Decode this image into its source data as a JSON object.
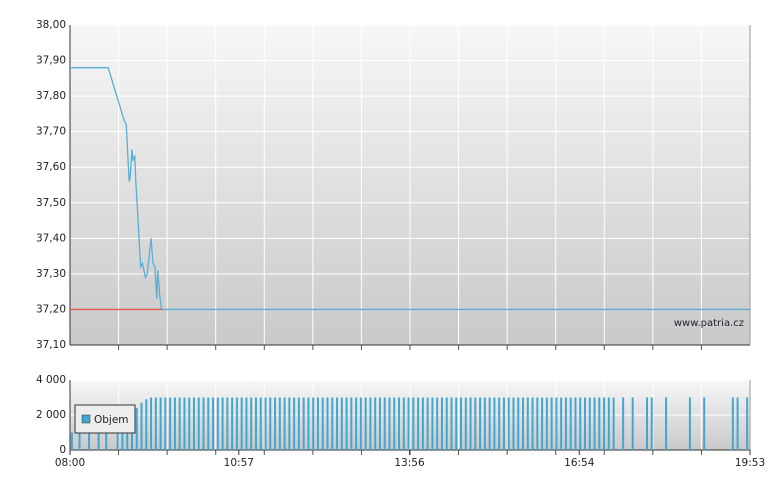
{
  "chart_data": [
    {
      "type": "line",
      "x": [
        "08:00",
        "08:40",
        "08:57",
        "08:59",
        "09:02",
        "09:03",
        "09:05",
        "09:06",
        "09:08",
        "09:09",
        "09:12",
        "09:14",
        "09:16",
        "09:19",
        "09:21",
        "09:25",
        "09:27",
        "09:29",
        "09:31",
        "09:32",
        "09:34",
        "09:36",
        "19:53"
      ],
      "series": [
        {
          "color": "#5aaed6",
          "values": [
            37.88,
            37.88,
            37.73,
            37.72,
            37.56,
            37.57,
            37.65,
            37.62,
            37.63,
            37.56,
            37.42,
            37.32,
            37.33,
            37.29,
            37.3,
            37.4,
            37.33,
            37.32,
            37.23,
            37.31,
            37.24,
            37.2,
            37.2
          ]
        },
        {
          "color": "#e8574a",
          "values": [
            37.2,
            37.2,
            37.2,
            37.2,
            37.2,
            37.2,
            37.2,
            37.2,
            37.2,
            37.2,
            37.2,
            37.2,
            37.2,
            37.2,
            37.2,
            37.2,
            37.2,
            37.2,
            37.2,
            37.2,
            37.2,
            37.2,
            null
          ]
        }
      ],
      "xlim": [
        "08:00",
        "19:53"
      ],
      "ylim": [
        37.1,
        38.0
      ],
      "yticks": [
        {
          "value": 37.1,
          "label": "37,10"
        },
        {
          "value": 37.2,
          "label": "37,20"
        },
        {
          "value": 37.3,
          "label": "37,30"
        },
        {
          "value": 37.4,
          "label": "37,40"
        },
        {
          "value": 37.5,
          "label": "37,50"
        },
        {
          "value": 37.6,
          "label": "37,60"
        },
        {
          "value": 37.7,
          "label": "37,70"
        },
        {
          "value": 37.8,
          "label": "37,80"
        },
        {
          "value": 37.9,
          "label": "37,90"
        },
        {
          "value": 38.0,
          "label": "38,00"
        }
      ],
      "grid": true,
      "annotation": "www.patria.cz"
    },
    {
      "type": "bar",
      "x": [
        "08:02",
        "08:10",
        "08:20",
        "08:30",
        "08:38",
        "08:50",
        "08:55",
        "09:00",
        "09:05",
        "09:10",
        "09:15",
        "09:20",
        "09:25",
        "09:30",
        "09:35",
        "09:40",
        "09:45",
        "09:50",
        "09:55",
        "10:00",
        "10:05",
        "10:10",
        "10:15",
        "10:20",
        "10:25",
        "10:30",
        "10:35",
        "10:40",
        "10:45",
        "10:50",
        "10:55",
        "11:00",
        "11:05",
        "11:10",
        "11:15",
        "11:20",
        "11:25",
        "11:30",
        "11:35",
        "11:40",
        "11:45",
        "11:50",
        "11:55",
        "12:00",
        "12:05",
        "12:10",
        "12:15",
        "12:20",
        "12:25",
        "12:30",
        "12:35",
        "12:40",
        "12:45",
        "12:50",
        "12:55",
        "13:00",
        "13:05",
        "13:10",
        "13:15",
        "13:20",
        "13:25",
        "13:30",
        "13:35",
        "13:40",
        "13:45",
        "13:50",
        "13:55",
        "14:00",
        "14:05",
        "14:10",
        "14:15",
        "14:20",
        "14:25",
        "14:30",
        "14:35",
        "14:40",
        "14:45",
        "14:50",
        "14:55",
        "15:00",
        "15:05",
        "15:10",
        "15:15",
        "15:20",
        "15:25",
        "15:30",
        "15:35",
        "15:40",
        "15:45",
        "15:50",
        "15:55",
        "16:00",
        "16:05",
        "16:10",
        "16:15",
        "16:20",
        "16:25",
        "16:30",
        "16:35",
        "16:40",
        "16:45",
        "16:50",
        "16:55",
        "17:00",
        "17:05",
        "17:10",
        "17:15",
        "17:20",
        "17:25",
        "17:30",
        "17:40",
        "17:50",
        "18:05",
        "18:10",
        "18:25",
        "18:50",
        "19:05",
        "19:35",
        "19:40",
        "19:50"
      ],
      "series": [
        {
          "name": "Objem",
          "color": "#43a6d0",
          "values": [
            1000,
            1000,
            1000,
            1000,
            1000,
            1200,
            1500,
            1800,
            2100,
            2400,
            2700,
            2900,
            3000,
            3000,
            3000,
            3000,
            3000,
            3000,
            3000,
            3000,
            3000,
            3000,
            3000,
            3000,
            3000,
            3000,
            3000,
            3000,
            3000,
            3000,
            3000,
            3000,
            3000,
            3000,
            3000,
            3000,
            3000,
            3000,
            3000,
            3000,
            3000,
            3000,
            3000,
            3000,
            3000,
            3000,
            3000,
            3000,
            3000,
            3000,
            3000,
            3000,
            3000,
            3000,
            3000,
            3000,
            3000,
            3000,
            3000,
            3000,
            3000,
            3000,
            3000,
            3000,
            3000,
            3000,
            3000,
            3000,
            3000,
            3000,
            3000,
            3000,
            3000,
            3000,
            3000,
            3000,
            3000,
            3000,
            3000,
            3000,
            3000,
            3000,
            3000,
            3000,
            3000,
            3000,
            3000,
            3000,
            3000,
            3000,
            3000,
            3000,
            3000,
            3000,
            3000,
            3000,
            3000,
            3000,
            3000,
            3000,
            3000,
            3000,
            3000,
            3000,
            3000,
            3000,
            3000,
            3000,
            3000,
            3000,
            3000,
            3000,
            3000,
            3000,
            3000,
            3000,
            3000,
            3000,
            3000,
            3000
          ]
        }
      ],
      "xlim": [
        "08:00",
        "19:53"
      ],
      "xticks": [
        {
          "value": "08:00",
          "label": "08:00"
        },
        {
          "value": "10:57",
          "label": "10:57"
        },
        {
          "value": "13:56",
          "label": "13:56"
        },
        {
          "value": "16:54",
          "label": "16:54"
        },
        {
          "value": "19:53",
          "label": "19:53"
        }
      ],
      "ylim": [
        0,
        4000
      ],
      "yticks": [
        0,
        {
          "value": 2000,
          "label": "2 000"
        },
        {
          "value": 4000,
          "label": "4 000"
        }
      ],
      "grid": true,
      "legend": "upper left"
    }
  ]
}
